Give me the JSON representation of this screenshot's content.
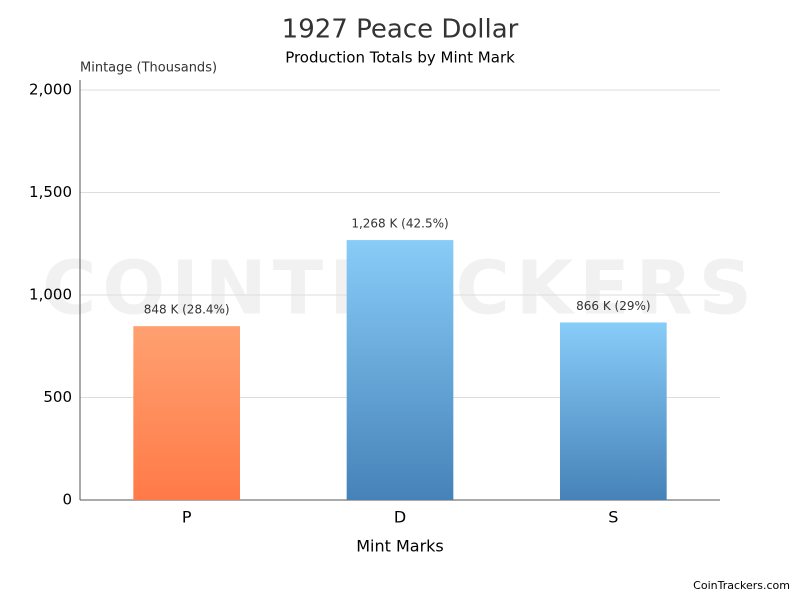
{
  "chart_data": {
    "type": "bar",
    "title": "1927 Peace Dollar",
    "subtitle": "Production Totals by Mint Mark",
    "y_label": "Mintage (Thousands)",
    "x_label": "Mint Marks",
    "watermark": "COINTRACKERS",
    "credit": "CoinTrackers.com",
    "categories": [
      "P",
      "D",
      "S"
    ],
    "values": [
      848,
      1268,
      866
    ],
    "value_labels": [
      "848 K (28.4%)",
      "1,268 K (42.5%)",
      "866 K (29%)"
    ],
    "gradients": [
      [
        "#ffa070",
        "#ff7a48"
      ],
      [
        "#88ccf8",
        "#4682b8"
      ],
      [
        "#88ccf8",
        "#4682b8"
      ]
    ],
    "ylim": [
      0,
      2000
    ],
    "yticks": [
      0,
      500,
      {
        "value": 1000,
        "label": "1,000"
      },
      {
        "value": 1500,
        "label": "1,500"
      },
      {
        "value": 2000,
        "label": "2,000"
      }
    ],
    "grid": true
  }
}
